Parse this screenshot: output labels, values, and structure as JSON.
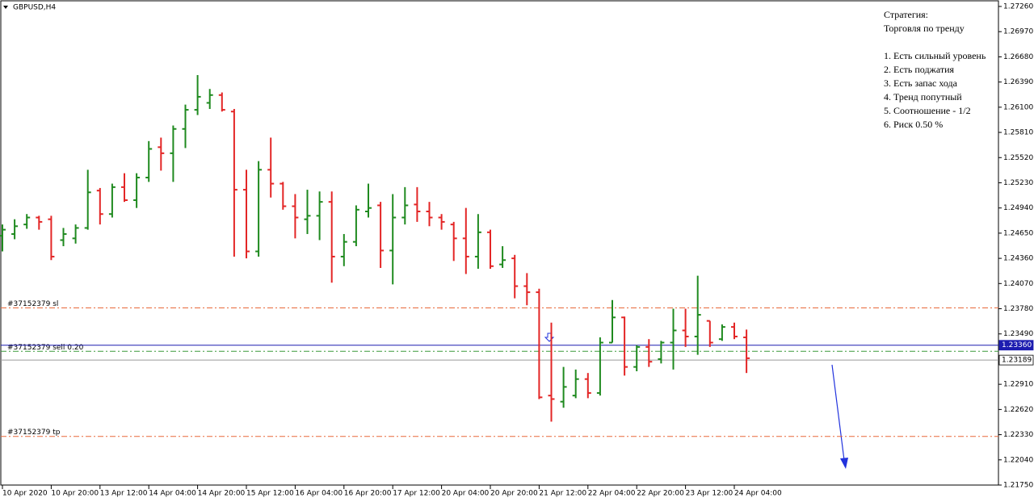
{
  "chart_data": {
    "type": "ohlc",
    "title": "GBPUSD,H4",
    "up_color": "#1f8a1f",
    "down_color": "#e32626",
    "categories": [
      "10 Apr 2020",
      null,
      null,
      null,
      "10 Apr 20:00",
      null,
      null,
      null,
      "13 Apr 12:00",
      null,
      null,
      null,
      "14 Apr 04:00",
      null,
      null,
      null,
      "14 Apr 20:00",
      null,
      null,
      null,
      "15 Apr 12:00",
      null,
      null,
      null,
      "16 Apr 04:00",
      null,
      null,
      null,
      "16 Apr 20:00",
      null,
      null,
      null,
      "17 Apr 12:00",
      null,
      null,
      null,
      "20 Apr 04:00",
      null,
      null,
      null,
      "20 Apr 20:00",
      null,
      null,
      null,
      "21 Apr 12:00",
      null,
      null,
      null,
      "22 Apr 04:00",
      null,
      null,
      null,
      "22 Apr 20:00",
      null,
      null,
      null,
      "23 Apr 12:00",
      null,
      null,
      null,
      "24 Apr 04:00",
      null
    ],
    "open": [
      1.2462,
      1.2464,
      1.2475,
      1.2483,
      1.2481,
      1.2457,
      1.2459,
      1.2471,
      1.2514,
      1.2487,
      1.2518,
      1.2503,
      1.2529,
      1.2564,
      1.2557,
      1.2585,
      1.2607,
      1.2615,
      1.2624,
      1.2605,
      1.2515,
      1.2444,
      1.2538,
      1.2522,
      1.2496,
      1.2481,
      1.2485,
      1.2501,
      1.2438,
      1.2455,
      1.249,
      1.2497,
      1.2445,
      1.2483,
      1.2498,
      1.249,
      1.2483,
      1.2475,
      1.2459,
      1.2438,
      1.2466,
      1.2429,
      1.2436,
      1.2404,
      1.2397,
      1.2278,
      1.2271,
      1.2278,
      1.2297,
      1.2281,
      1.2339,
      1.2368,
      1.2311,
      1.2334,
      1.232,
      1.2339,
      1.2353,
      1.2346,
      1.2364,
      1.2343,
      1.2357,
      1.2345
    ],
    "high": [
      1.2475,
      1.2481,
      1.2487,
      1.2485,
      1.2485,
      1.2471,
      1.2475,
      1.2538,
      1.2517,
      1.2522,
      1.2534,
      1.2534,
      1.2571,
      1.2575,
      1.2589,
      1.2613,
      1.2647,
      1.2631,
      1.2627,
      1.2608,
      1.2538,
      1.2548,
      1.2575,
      1.2524,
      1.251,
      1.2515,
      1.2513,
      1.2513,
      1.2464,
      1.2497,
      1.2522,
      1.2501,
      1.251,
      1.2518,
      1.2518,
      1.2501,
      1.2487,
      1.2478,
      1.2494,
      1.2487,
      1.2469,
      1.245,
      1.244,
      1.2419,
      1.2401,
      1.2362,
      1.2311,
      1.2308,
      1.2304,
      1.2345,
      1.2388,
      1.2369,
      1.2336,
      1.2343,
      1.2341,
      1.2378,
      1.2378,
      1.2416,
      1.2364,
      1.236,
      1.2362,
      1.2354
    ],
    "low": [
      1.2444,
      1.2458,
      1.247,
      1.2469,
      1.2434,
      1.245,
      1.2453,
      1.2469,
      1.2475,
      1.2483,
      1.2501,
      1.2494,
      1.2524,
      1.2537,
      1.2524,
      1.2563,
      1.2601,
      1.2608,
      1.2605,
      1.2438,
      1.2436,
      1.2438,
      1.2506,
      1.2492,
      1.2459,
      1.2464,
      1.2457,
      1.2408,
      1.2427,
      1.245,
      1.2483,
      1.2425,
      1.2406,
      1.2475,
      1.2478,
      1.2473,
      1.2469,
      1.2433,
      1.2418,
      1.2424,
      1.2424,
      1.2425,
      1.239,
      1.2382,
      1.2274,
      1.2248,
      1.2264,
      1.2275,
      1.2275,
      1.2278,
      1.2339,
      1.2301,
      1.2306,
      1.2311,
      1.2315,
      1.2308,
      1.2334,
      1.2325,
      1.2334,
      1.2341,
      1.2343,
      1.2304
    ],
    "close": [
      1.2469,
      1.2473,
      1.2483,
      1.2478,
      1.2438,
      1.2464,
      1.2471,
      1.2512,
      1.2487,
      1.2518,
      1.2503,
      1.2529,
      1.2562,
      1.2557,
      1.2585,
      1.2607,
      1.2622,
      1.2624,
      1.2607,
      1.2515,
      1.2444,
      1.2538,
      1.2522,
      1.2496,
      1.2483,
      1.2485,
      1.2501,
      1.2438,
      1.2455,
      1.2492,
      1.2494,
      1.2445,
      1.2483,
      1.2497,
      1.249,
      1.2483,
      1.2478,
      1.2459,
      1.2438,
      1.2466,
      1.2427,
      1.2434,
      1.2404,
      1.2397,
      1.2276,
      1.2274,
      1.2288,
      1.2297,
      1.2281,
      1.2339,
      1.2368,
      1.2311,
      1.2334,
      1.2317,
      1.2339,
      1.2353,
      1.2346,
      1.2371,
      1.2339,
      1.2357,
      1.2346,
      1.2321
    ],
    "ylim": [
      1.2175,
      1.2726
    ],
    "yticks": [
      {
        "value": 1.2726,
        "label": "1.27260"
      },
      {
        "value": 1.2697,
        "label": "1.26970"
      },
      {
        "value": 1.2668,
        "label": "1.26680"
      },
      {
        "value": 1.2639,
        "label": "1.26390"
      },
      {
        "value": 1.261,
        "label": "1.26100"
      },
      {
        "value": 1.2581,
        "label": "1.25810"
      },
      {
        "value": 1.2552,
        "label": "1.25520"
      },
      {
        "value": 1.2523,
        "label": "1.25230"
      },
      {
        "value": 1.2494,
        "label": "1.24940"
      },
      {
        "value": 1.2465,
        "label": "1.24650"
      },
      {
        "value": 1.2436,
        "label": "1.24360"
      },
      {
        "value": 1.2407,
        "label": "1.24070"
      },
      {
        "value": 1.2378,
        "label": "1.23780"
      },
      {
        "value": 1.2349,
        "label": "1.23490"
      },
      {
        "value": 1.2291,
        "label": "1.22910"
      },
      {
        "value": 1.2262,
        "label": "1.22620"
      },
      {
        "value": 1.2233,
        "label": "1.22330"
      },
      {
        "value": 1.2204,
        "label": "1.22040"
      },
      {
        "value": 1.2175,
        "label": "1.21750"
      }
    ],
    "levels": [
      {
        "label": "#37152379 sl",
        "value": 1.2379,
        "color": "#e8683a"
      },
      {
        "label": "#37152379 sell 0.20",
        "value": 1.2329,
        "color": "#3a9a3a"
      },
      {
        "label": "#37152379 tp",
        "value": 1.2231,
        "color": "#e8683a"
      }
    ],
    "price_lines": [
      {
        "label": "1.23360",
        "value": 1.2336,
        "color": "#1c1cb0"
      },
      {
        "label": "1.23189",
        "value": 1.23189,
        "color": "#9a9a9a"
      }
    ],
    "notes": [
      "Стратегия:",
      "Торговля по тренду",
      "1. Есть сильный уровень",
      "2. Есть поджатия",
      "3. Есть запас хода",
      "4. Тренд попутный",
      "5. Соотношение - 1/2",
      "6. Риск 0.50 %"
    ]
  }
}
